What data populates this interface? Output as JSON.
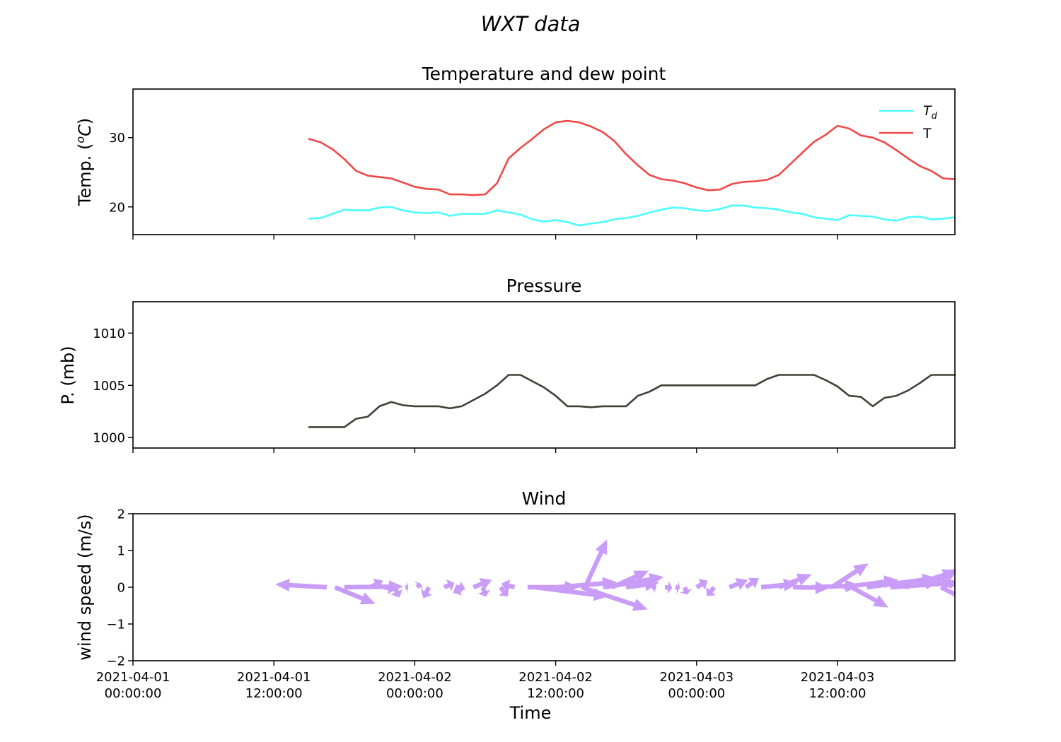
{
  "suptitle": "WXT data",
  "xlabel": "Time",
  "x_tick_labels": [
    [
      "2021-04-01",
      "00:00:00"
    ],
    [
      "2021-04-01",
      "12:00:00"
    ],
    [
      "2021-04-02",
      "00:00:00"
    ],
    [
      "2021-04-02",
      "12:00:00"
    ],
    [
      "2021-04-03",
      "00:00:00"
    ],
    [
      "2021-04-03",
      "12:00:00"
    ]
  ],
  "colors": {
    "dew_point": "#4dfdfd",
    "temperature": "#f04848",
    "pressure": "#404036",
    "wind": "#c99cf7"
  },
  "chart_data": [
    {
      "type": "line",
      "title": "Temperature and dew point",
      "ylabel": "Temp. (",
      "ylabel_math": "oC",
      "x_unit": "hours since 2021-04-01 00:00:00",
      "xlim": [
        0,
        70
      ],
      "ylim": [
        16,
        37
      ],
      "yticks": [
        20,
        30
      ],
      "legend_position": "top-right",
      "x": [
        15,
        16,
        17,
        18,
        19,
        20,
        21,
        22,
        23,
        24,
        25,
        26,
        27,
        28,
        29,
        30,
        31,
        32,
        33,
        34,
        35,
        36,
        37,
        38,
        39,
        40,
        41,
        42,
        43,
        44,
        45,
        46,
        47,
        48,
        49,
        50,
        51,
        52,
        53,
        54,
        55,
        56,
        57,
        58,
        59,
        60,
        61,
        62,
        63,
        64,
        65,
        66,
        67,
        68,
        69,
        70
      ],
      "series": [
        {
          "name": "T",
          "name_sub": "d",
          "label": "T",
          "color_key": "dew_point",
          "values": [
            18.3,
            18.4,
            19.0,
            19.6,
            19.5,
            19.5,
            19.9,
            20.0,
            19.5,
            19.2,
            19.1,
            19.2,
            18.7,
            19.0,
            19.0,
            19.0,
            19.5,
            19.2,
            18.9,
            18.2,
            17.9,
            18.1,
            17.8,
            17.3,
            17.6,
            17.8,
            18.2,
            18.4,
            18.7,
            19.2,
            19.6,
            19.9,
            19.8,
            19.5,
            19.4,
            19.7,
            20.2,
            20.2,
            19.9,
            19.8,
            19.6,
            19.2,
            19.0,
            18.5,
            18.3,
            18.1,
            18.8,
            18.7,
            18.6,
            18.2,
            18.0,
            18.5,
            18.6,
            18.2,
            18.3,
            18.5
          ]
        },
        {
          "name": "T",
          "label": "T",
          "color_key": "temperature",
          "values": [
            29.8,
            29.3,
            28.3,
            26.9,
            25.2,
            24.5,
            24.3,
            24.1,
            23.5,
            22.9,
            22.6,
            22.5,
            21.8,
            21.8,
            21.7,
            21.8,
            23.4,
            27.0,
            28.5,
            29.8,
            31.2,
            32.2,
            32.4,
            32.2,
            31.6,
            30.8,
            29.5,
            27.6,
            26.0,
            24.6,
            24.0,
            23.8,
            23.4,
            22.8,
            22.4,
            22.5,
            23.3,
            23.6,
            23.7,
            23.9,
            24.6,
            26.2,
            27.8,
            29.4,
            30.4,
            31.7,
            31.3,
            30.3,
            30.0,
            29.3,
            28.2,
            27.0,
            25.9,
            25.2,
            24.1,
            24.0
          ]
        }
      ]
    },
    {
      "type": "line",
      "title": "Pressure",
      "ylabel": "P. (mb)",
      "x_unit": "hours since 2021-04-01 00:00:00",
      "xlim": [
        0,
        70
      ],
      "ylim": [
        999,
        1013
      ],
      "yticks": [
        1000,
        1005,
        1010
      ],
      "x": [
        15,
        16,
        17,
        18,
        19,
        20,
        21,
        22,
        23,
        24,
        25,
        26,
        27,
        28,
        29,
        30,
        31,
        32,
        33,
        34,
        35,
        36,
        37,
        38,
        39,
        40,
        41,
        42,
        43,
        44,
        45,
        46,
        47,
        48,
        49,
        50,
        51,
        52,
        53,
        54,
        55,
        56,
        57,
        58,
        59,
        60,
        61,
        62,
        63,
        64,
        65,
        66,
        67,
        68,
        69,
        70
      ],
      "series": [
        {
          "label": "Pressure",
          "color_key": "pressure",
          "values": [
            1001,
            1001,
            1001,
            1001,
            1001.8,
            1002.0,
            1003.0,
            1003.4,
            1003.1,
            1003.0,
            1003.0,
            1003.0,
            1002.8,
            1003.0,
            1003.6,
            1004.2,
            1005.0,
            1006,
            1006,
            1005.4,
            1004.8,
            1004.0,
            1003.0,
            1003.0,
            1002.9,
            1003.0,
            1003.0,
            1003.0,
            1004.0,
            1004.4,
            1005,
            1005,
            1005,
            1005,
            1005,
            1005,
            1005,
            1005,
            1005,
            1005.6,
            1006,
            1006,
            1006,
            1006,
            1005.5,
            1004.9,
            1004.0,
            1003.9,
            1003.0,
            1003.8,
            1004.0,
            1004.5,
            1005.2,
            1006,
            1006,
            1006
          ]
        }
      ]
    },
    {
      "type": "quiver",
      "title": "Wind",
      "ylabel": "wind speed (m/s)",
      "x_unit": "hours since 2021-04-01 00:00:00",
      "xlim": [
        0,
        70
      ],
      "ylim": [
        -2,
        2
      ],
      "yticks": [
        -2,
        -1,
        0,
        1,
        2
      ],
      "ytick_labels": [
        "−2",
        "−1",
        "0",
        "1",
        "2"
      ],
      "color_key": "wind",
      "points": [
        {
          "x": 16.5,
          "u": -1.4,
          "v": 0.08
        },
        {
          "x": 17.2,
          "u": 1.1,
          "v": -0.45
        },
        {
          "x": 18.0,
          "u": 1.6,
          "v": 0.02
        },
        {
          "x": 20.2,
          "u": 0.35,
          "v": 0.18
        },
        {
          "x": 21.4,
          "u": 0.28,
          "v": -0.06
        },
        {
          "x": 22.3,
          "u": 0.12,
          "v": -0.28
        },
        {
          "x": 23.2,
          "u": 0.08,
          "v": 0.0
        },
        {
          "x": 24.2,
          "u": 0.1,
          "v": 0.1
        },
        {
          "x": 25.2,
          "u": -0.15,
          "v": -0.3
        },
        {
          "x": 26.5,
          "u": 0.28,
          "v": 0.12
        },
        {
          "x": 27.6,
          "u": 0.2,
          "v": 0.0
        },
        {
          "x": 28.2,
          "u": -0.3,
          "v": -0.15
        },
        {
          "x": 29.0,
          "u": 0.5,
          "v": 0.2
        },
        {
          "x": 29.8,
          "u": 0.08,
          "v": -0.26
        },
        {
          "x": 31.3,
          "u": 0.2,
          "v": -0.25
        },
        {
          "x": 32.5,
          "u": -0.36,
          "v": 0.1
        },
        {
          "x": 33.6,
          "u": 1.4,
          "v": 0.0
        },
        {
          "x": 34.2,
          "u": 2.0,
          "v": -0.25
        },
        {
          "x": 36.2,
          "u": 1.6,
          "v": 0.14
        },
        {
          "x": 38.2,
          "u": 1.8,
          "v": -0.6
        },
        {
          "x": 38.5,
          "u": 0.6,
          "v": 1.3
        },
        {
          "x": 40.2,
          "u": 1.6,
          "v": 0.28
        },
        {
          "x": 40.8,
          "u": 1.0,
          "v": 0.45
        },
        {
          "x": 42.0,
          "u": 0.9,
          "v": 0.12
        },
        {
          "x": 44.2,
          "u": 0.12,
          "v": 0.0
        },
        {
          "x": 45.3,
          "u": 0.2,
          "v": -0.02
        },
        {
          "x": 46.2,
          "u": 0.12,
          "v": -0.02
        },
        {
          "x": 47.0,
          "u": 0.07,
          "v": -0.2
        },
        {
          "x": 48.0,
          "u": 0.3,
          "v": 0.18
        },
        {
          "x": 49.5,
          "u": -0.2,
          "v": -0.24
        },
        {
          "x": 50.8,
          "u": 0.5,
          "v": 0.2
        },
        {
          "x": 52.2,
          "u": 0.35,
          "v": 0.25
        },
        {
          "x": 53.5,
          "u": 1.0,
          "v": 0.1
        },
        {
          "x": 55.0,
          "u": 0.9,
          "v": 0.35
        },
        {
          "x": 56.2,
          "u": 1.0,
          "v": -0.02
        },
        {
          "x": 57.8,
          "u": 1.3,
          "v": 0.05
        },
        {
          "x": 59.5,
          "u": 1.0,
          "v": 0.65
        },
        {
          "x": 60.5,
          "u": 1.5,
          "v": 0.2
        },
        {
          "x": 61.2,
          "u": 1.0,
          "v": -0.55
        },
        {
          "x": 62.5,
          "u": 1.9,
          "v": 0.25
        },
        {
          "x": 64.5,
          "u": 1.8,
          "v": 0.12
        },
        {
          "x": 65.8,
          "u": 1.4,
          "v": 0.45
        },
        {
          "x": 67.5,
          "u": 0.9,
          "v": 0.5
        },
        {
          "x": 68.8,
          "u": 1.2,
          "v": -0.6
        },
        {
          "x": 69.5,
          "u": 0.2,
          "v": 0.18
        }
      ]
    }
  ]
}
